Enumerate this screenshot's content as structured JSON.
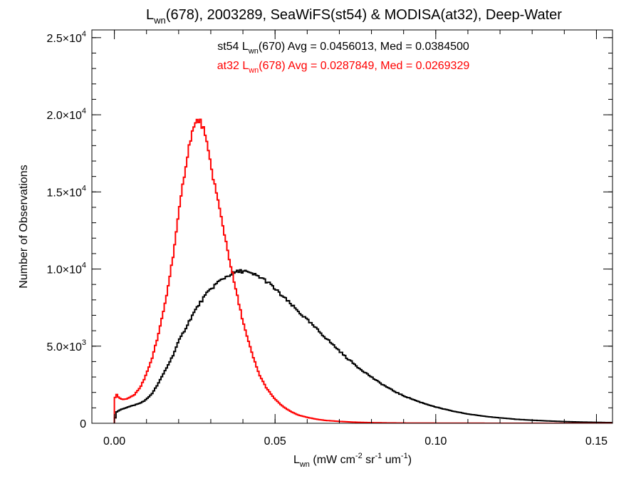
{
  "chart_data": {
    "type": "histogram",
    "title": {
      "main": "L",
      "sub": "wn",
      "rest": "(678), 2003289, SeaWiFS(st54) & MODISA(at32), Deep-Water"
    },
    "xlabel": {
      "main": "L",
      "sub": "wn",
      "rest_parts": [
        {
          "text": " (mW cm",
          "sup": "-2"
        },
        {
          "text": " sr",
          "sup": "-1"
        },
        {
          "text": " um",
          "sup": "-1"
        },
        {
          "text": ")",
          "sup": ""
        }
      ]
    },
    "ylabel": "Number of Observations",
    "xlim": [
      -0.007,
      0.155
    ],
    "ylim": [
      0,
      25500
    ],
    "grid": false,
    "x_ticks": [
      {
        "value": 0.0,
        "label": "0.00"
      },
      {
        "value": 0.05,
        "label": "0.05"
      },
      {
        "value": 0.1,
        "label": "0.10"
      },
      {
        "value": 0.15,
        "label": "0.15"
      }
    ],
    "x_minor_step": 0.01,
    "y_ticks": [
      {
        "value": 0,
        "mantissa": "0",
        "exponent": ""
      },
      {
        "value": 5000,
        "mantissa": "5.0×10",
        "exponent": "3"
      },
      {
        "value": 10000,
        "mantissa": "1.0×10",
        "exponent": "4"
      },
      {
        "value": 15000,
        "mantissa": "1.5×10",
        "exponent": "4"
      },
      {
        "value": 20000,
        "mantissa": "2.0×10",
        "exponent": "4"
      },
      {
        "value": 25000,
        "mantissa": "2.5×10",
        "exponent": "4"
      }
    ],
    "y_minor_step": 1000,
    "bin_width": 0.0005,
    "series": [
      {
        "id": "st54",
        "color": "#000000",
        "annotation": {
          "prefix": "st54 L",
          "sub": "wn",
          "rest": "(670) Avg = 0.0456013, Med = 0.0384500"
        },
        "points": [
          [
            0.0,
            0
          ],
          [
            0.0005,
            700
          ],
          [
            0.002,
            900
          ],
          [
            0.005,
            1100
          ],
          [
            0.008,
            1300
          ],
          [
            0.01,
            1550
          ],
          [
            0.012,
            2000
          ],
          [
            0.014,
            2700
          ],
          [
            0.016,
            3500
          ],
          [
            0.018,
            4300
          ],
          [
            0.02,
            5300
          ],
          [
            0.022,
            6100
          ],
          [
            0.024,
            6900
          ],
          [
            0.026,
            7600
          ],
          [
            0.028,
            8200
          ],
          [
            0.03,
            8700
          ],
          [
            0.032,
            9100
          ],
          [
            0.034,
            9400
          ],
          [
            0.036,
            9650
          ],
          [
            0.038,
            9800
          ],
          [
            0.0405,
            9900
          ],
          [
            0.042,
            9700
          ],
          [
            0.044,
            9600
          ],
          [
            0.046,
            9400
          ],
          [
            0.048,
            9100
          ],
          [
            0.05,
            8700
          ],
          [
            0.052,
            8300
          ],
          [
            0.054,
            7900
          ],
          [
            0.056,
            7500
          ],
          [
            0.058,
            7100
          ],
          [
            0.06,
            6700
          ],
          [
            0.062,
            6300
          ],
          [
            0.064,
            5900
          ],
          [
            0.066,
            5500
          ],
          [
            0.068,
            5100
          ],
          [
            0.07,
            4700
          ],
          [
            0.072,
            4300
          ],
          [
            0.074,
            3950
          ],
          [
            0.076,
            3600
          ],
          [
            0.078,
            3300
          ],
          [
            0.08,
            3000
          ],
          [
            0.082,
            2700
          ],
          [
            0.084,
            2450
          ],
          [
            0.086,
            2200
          ],
          [
            0.088,
            1980
          ],
          [
            0.09,
            1780
          ],
          [
            0.095,
            1380
          ],
          [
            0.1,
            1050
          ],
          [
            0.105,
            800
          ],
          [
            0.11,
            600
          ],
          [
            0.115,
            460
          ],
          [
            0.12,
            350
          ],
          [
            0.125,
            260
          ],
          [
            0.13,
            200
          ],
          [
            0.135,
            150
          ],
          [
            0.14,
            110
          ],
          [
            0.145,
            80
          ],
          [
            0.15,
            60
          ],
          [
            0.155,
            40
          ]
        ]
      },
      {
        "id": "at32",
        "color": "#ff0000",
        "annotation": {
          "prefix": "at32 L",
          "sub": "wn",
          "rest": "(678) Avg = 0.0287849, Med = 0.0269329"
        },
        "points": [
          [
            0.0,
            0
          ],
          [
            0.0003,
            2000
          ],
          [
            0.0012,
            1700
          ],
          [
            0.0025,
            1550
          ],
          [
            0.004,
            1600
          ],
          [
            0.006,
            1800
          ],
          [
            0.008,
            2300
          ],
          [
            0.01,
            3200
          ],
          [
            0.012,
            4400
          ],
          [
            0.014,
            6000
          ],
          [
            0.016,
            8000
          ],
          [
            0.018,
            10500
          ],
          [
            0.02,
            13500
          ],
          [
            0.022,
            16500
          ],
          [
            0.024,
            18800
          ],
          [
            0.026,
            19700
          ],
          [
            0.0275,
            19300
          ],
          [
            0.029,
            17800
          ],
          [
            0.031,
            15700
          ],
          [
            0.033,
            13600
          ],
          [
            0.035,
            11500
          ],
          [
            0.037,
            9400
          ],
          [
            0.039,
            7500
          ],
          [
            0.041,
            5800
          ],
          [
            0.043,
            4400
          ],
          [
            0.045,
            3200
          ],
          [
            0.047,
            2400
          ],
          [
            0.049,
            1800
          ],
          [
            0.051,
            1350
          ],
          [
            0.053,
            1000
          ],
          [
            0.055,
            750
          ],
          [
            0.057,
            550
          ],
          [
            0.06,
            380
          ],
          [
            0.063,
            260
          ],
          [
            0.066,
            180
          ],
          [
            0.07,
            120
          ],
          [
            0.075,
            70
          ],
          [
            0.08,
            40
          ],
          [
            0.085,
            25
          ],
          [
            0.09,
            15
          ],
          [
            0.1,
            8
          ],
          [
            0.11,
            4
          ],
          [
            0.12,
            2
          ],
          [
            0.13,
            0
          ],
          [
            0.155,
            0
          ]
        ]
      }
    ]
  }
}
